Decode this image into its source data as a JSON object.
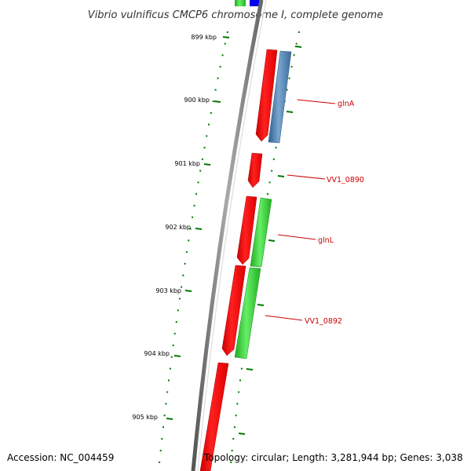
{
  "title": "Vibrio vulnificus CMCP6 chromosome I, complete genome",
  "accession": "Accession: NC_004459",
  "topology": "Topology: circular; Length: 3,281,944 bp; Genes: 3,038",
  "kbp_labels": [
    "899 kbp",
    "900 kbp",
    "901 kbp",
    "902 kbp",
    "903 kbp",
    "904 kbp",
    "905 kbp"
  ],
  "gene_labels": [
    "glnA",
    "VV1_0890",
    "glnL",
    "VV1_0892"
  ],
  "colors": {
    "forward_cds": "#ff0000",
    "reverse_cds_blue": "#4a7fb5",
    "reverse_cds_green": "#33cc33",
    "backbone": "#808080",
    "ticks": "#007700",
    "label_text": "#cc0000"
  }
}
